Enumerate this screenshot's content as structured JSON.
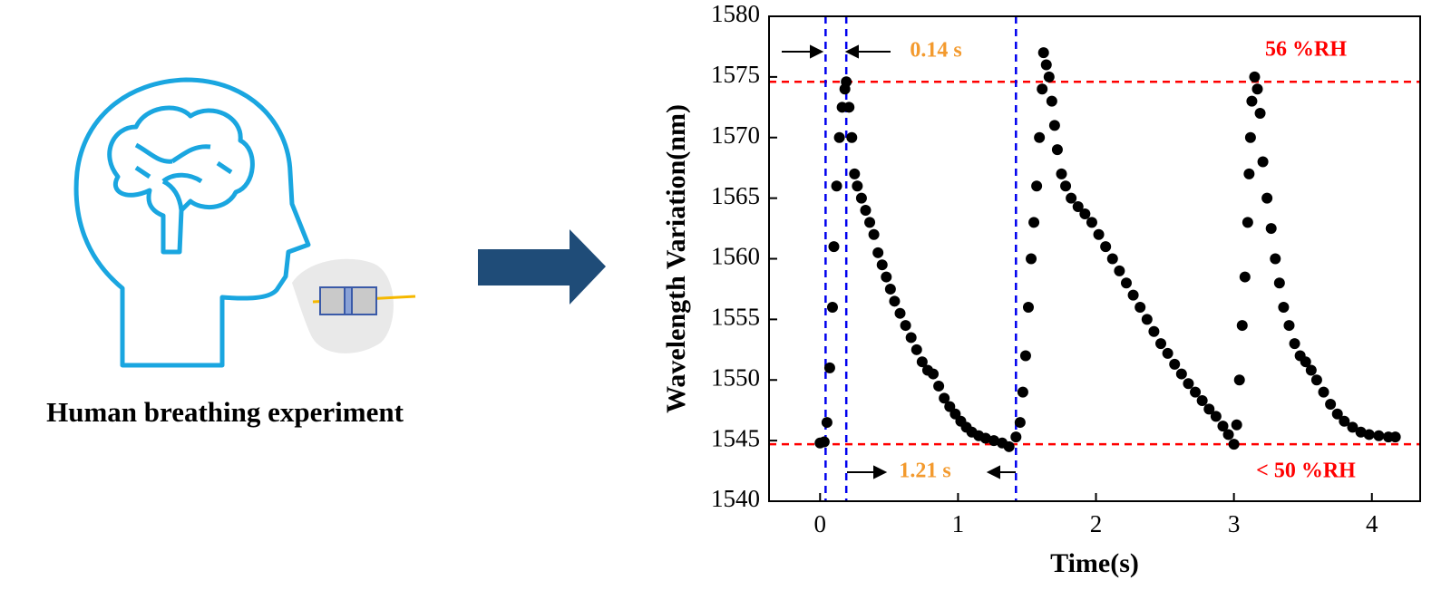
{
  "caption": "Human breathing experiment",
  "chart_data": {
    "type": "scatter",
    "x_label": "Time(s)",
    "y_label": "Wavelength Variation(nm)",
    "xlim": [
      -0.37,
      4.35
    ],
    "ylim": [
      1540,
      1580
    ],
    "xticks": [
      0,
      1,
      2,
      3,
      4
    ],
    "yticks": [
      1540,
      1545,
      1550,
      1555,
      1560,
      1565,
      1570,
      1575,
      1580
    ],
    "color": "#000000",
    "x": [
      0.0,
      0.03,
      0.05,
      0.07,
      0.09,
      0.1,
      0.12,
      0.14,
      0.16,
      0.18,
      0.19,
      0.21,
      0.23,
      0.25,
      0.27,
      0.3,
      0.33,
      0.36,
      0.39,
      0.42,
      0.45,
      0.48,
      0.51,
      0.54,
      0.58,
      0.62,
      0.66,
      0.7,
      0.74,
      0.78,
      0.82,
      0.86,
      0.9,
      0.94,
      0.98,
      1.02,
      1.06,
      1.1,
      1.15,
      1.2,
      1.26,
      1.32,
      1.37,
      1.42,
      1.45,
      1.47,
      1.49,
      1.51,
      1.53,
      1.55,
      1.57,
      1.59,
      1.61,
      1.62,
      1.64,
      1.66,
      1.68,
      1.7,
      1.72,
      1.75,
      1.78,
      1.82,
      1.87,
      1.92,
      1.97,
      2.02,
      2.07,
      2.12,
      2.17,
      2.22,
      2.27,
      2.32,
      2.37,
      2.42,
      2.47,
      2.52,
      2.57,
      2.62,
      2.67,
      2.72,
      2.77,
      2.82,
      2.87,
      2.92,
      2.96,
      3.0,
      3.02,
      3.04,
      3.06,
      3.08,
      3.1,
      3.11,
      3.12,
      3.13,
      3.15,
      3.17,
      3.19,
      3.21,
      3.24,
      3.27,
      3.3,
      3.33,
      3.36,
      3.4,
      3.44,
      3.48,
      3.52,
      3.56,
      3.6,
      3.65,
      3.7,
      3.75,
      3.8,
      3.86,
      3.92,
      3.98,
      4.05,
      4.12,
      4.17
    ],
    "y": [
      1544.8,
      1544.9,
      1546.5,
      1551,
      1556,
      1561,
      1566,
      1570,
      1572.5,
      1574,
      1574.6,
      1572.5,
      1570,
      1567,
      1566,
      1565,
      1564,
      1563,
      1562,
      1560.5,
      1559.5,
      1558.5,
      1557.5,
      1556.5,
      1555.5,
      1554.5,
      1553.5,
      1552.5,
      1551.5,
      1550.8,
      1550.5,
      1549.5,
      1548.5,
      1547.8,
      1547.2,
      1546.6,
      1546.1,
      1545.7,
      1545.4,
      1545.2,
      1545.0,
      1544.8,
      1544.5,
      1545.3,
      1546.5,
      1549,
      1552,
      1556,
      1560,
      1563,
      1566,
      1570,
      1574,
      1577,
      1576,
      1575,
      1573,
      1571,
      1569,
      1567,
      1566,
      1565,
      1564.3,
      1563.7,
      1563,
      1562,
      1561,
      1560,
      1559,
      1558,
      1557,
      1556,
      1555,
      1554,
      1553,
      1552.2,
      1551.3,
      1550.5,
      1549.7,
      1549,
      1548.3,
      1547.6,
      1547,
      1546.2,
      1545.5,
      1544.7,
      1546.3,
      1550,
      1554.5,
      1558.5,
      1563,
      1567,
      1570,
      1573,
      1575,
      1574,
      1572,
      1568,
      1565,
      1562.5,
      1560,
      1558,
      1556,
      1554.5,
      1553,
      1552,
      1551.5,
      1550.8,
      1550,
      1549,
      1548,
      1547.2,
      1546.6,
      1546.1,
      1545.7,
      1545.5,
      1545.4,
      1545.3,
      1545.3
    ],
    "hlines": [
      {
        "value": 1574.6,
        "label": "56 %RH"
      },
      {
        "value": 1544.7,
        "label": "< 50 %RH"
      }
    ],
    "hline_color": "#ff0000",
    "vlines": [
      0.04,
      0.19,
      1.42
    ],
    "vline_color": "#0000ee",
    "annotations": [
      "0.14 s",
      "1.21 s"
    ],
    "annotation_color": "#f39a2e"
  }
}
